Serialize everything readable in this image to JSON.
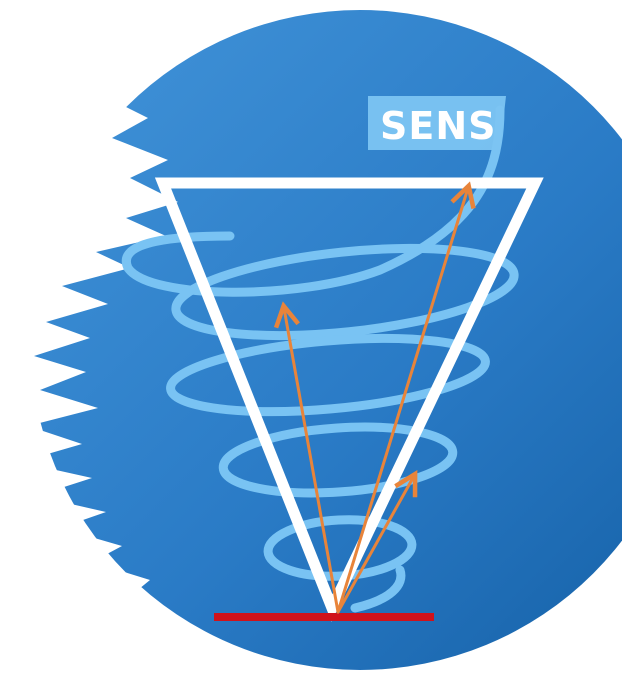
{
  "logo": {
    "label": "SENS",
    "colors": {
      "disc_light": "#3d8fd6",
      "disc_dark": "#1662a8",
      "triangle": "#ffffff",
      "spiral": "#79c3f3",
      "label_box": "#7cc4f2",
      "arrows": "#e8843a",
      "base_line": "#d0121b",
      "torn_edge": "#ffffff"
    },
    "icons": [
      "inverted-triangle-icon",
      "spiral-icon",
      "arrow-icon",
      "base-line-icon"
    ]
  }
}
